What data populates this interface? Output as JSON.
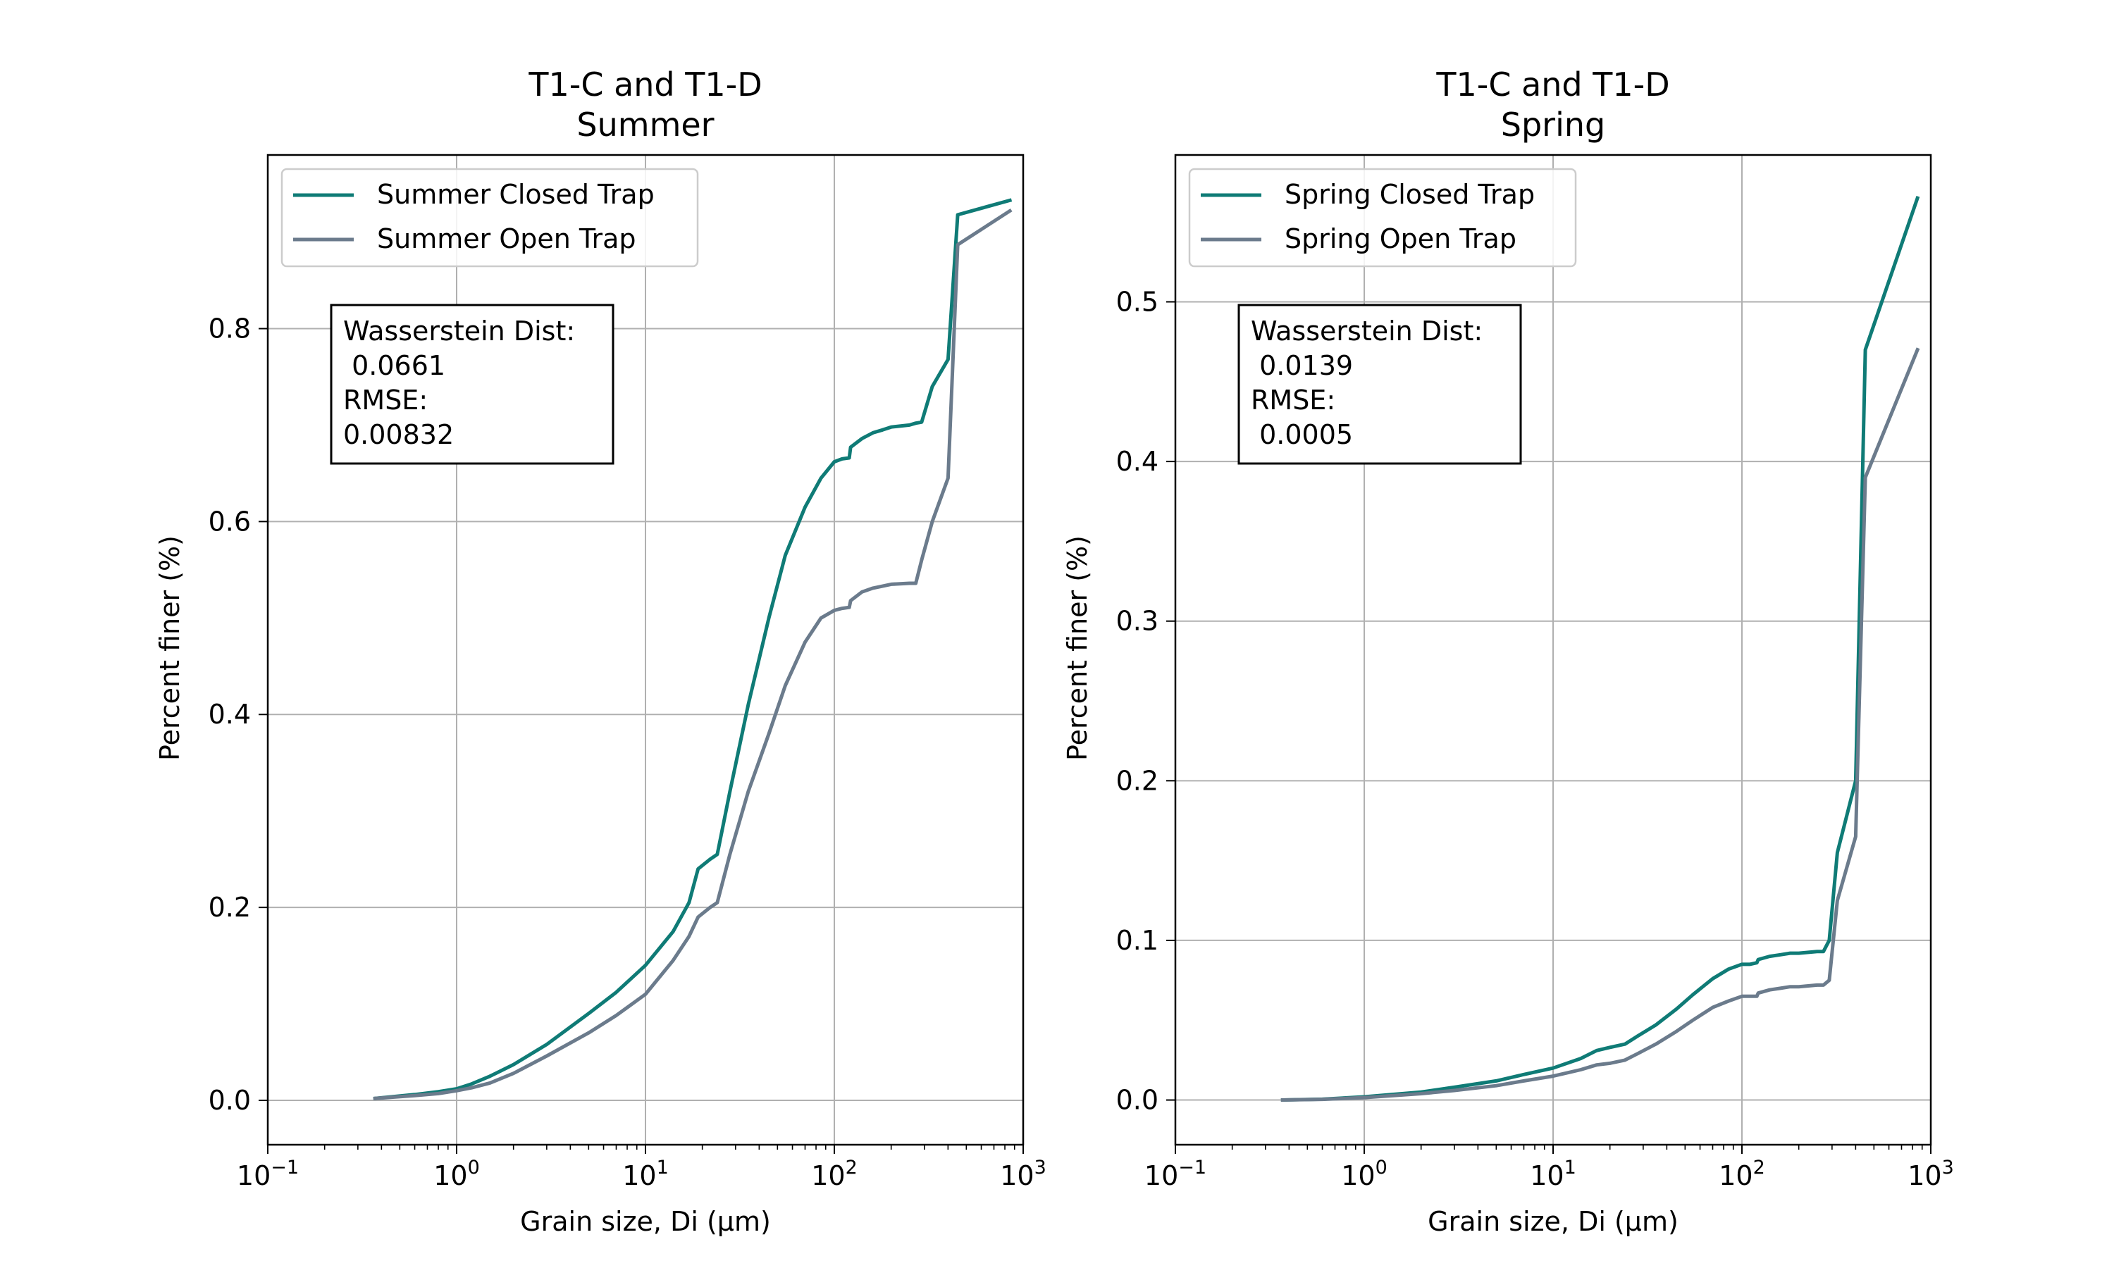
{
  "chart_data": [
    {
      "type": "line",
      "title": "T1-C and T1-D",
      "subtitle": "Summer",
      "xlabel": "Grain size, Di (μm)",
      "ylabel": "Percent finer (%)",
      "xscale": "log",
      "xlim": [
        0.1,
        1000
      ],
      "ylim": [
        -0.046,
        0.98
      ],
      "xticks": [
        0.1,
        1,
        10,
        100,
        1000
      ],
      "xtick_labels": [
        [
          "10",
          "−1"
        ],
        [
          "10",
          "0"
        ],
        [
          "10",
          "1"
        ],
        [
          "10",
          "2"
        ],
        [
          "10",
          "3"
        ]
      ],
      "yticks": [
        0.0,
        0.2,
        0.4,
        0.6,
        0.8
      ],
      "ytick_labels": [
        "0.0",
        "0.2",
        "0.4",
        "0.6",
        "0.8"
      ],
      "grid": true,
      "legend_position": "upper-left",
      "annotation": [
        "Wasserstein Dist:",
        " 0.0661",
        "RMSE:",
        "0.00832"
      ],
      "series": [
        {
          "name": "Summer Closed Trap",
          "color": "#0f7b76",
          "x": [
            0.37,
            0.6,
            0.8,
            1.0,
            1.2,
            1.5,
            2,
            3,
            5,
            7,
            10,
            14,
            17,
            19,
            22,
            24,
            28,
            35,
            45,
            55,
            70,
            85,
            100,
            110,
            120,
            122,
            140,
            160,
            180,
            200,
            250,
            270,
            290,
            330,
            400,
            450,
            850
          ],
          "y": [
            0.002,
            0.006,
            0.009,
            0.012,
            0.017,
            0.025,
            0.037,
            0.058,
            0.09,
            0.112,
            0.14,
            0.175,
            0.205,
            0.24,
            0.25,
            0.255,
            0.32,
            0.41,
            0.5,
            0.565,
            0.615,
            0.645,
            0.662,
            0.665,
            0.666,
            0.677,
            0.686,
            0.692,
            0.695,
            0.698,
            0.7,
            0.702,
            0.703,
            0.74,
            0.768,
            0.918,
            0.933
          ]
        },
        {
          "name": "Summer Open Trap",
          "color": "#6b7b8c",
          "x": [
            0.37,
            0.6,
            0.8,
            1.0,
            1.2,
            1.5,
            2,
            3,
            5,
            7,
            10,
            14,
            17,
            19,
            22,
            24,
            28,
            35,
            45,
            55,
            70,
            85,
            100,
            110,
            120,
            122,
            140,
            160,
            180,
            200,
            250,
            270,
            290,
            330,
            400,
            450,
            850
          ],
          "y": [
            0.002,
            0.005,
            0.007,
            0.01,
            0.013,
            0.018,
            0.028,
            0.046,
            0.07,
            0.088,
            0.11,
            0.145,
            0.17,
            0.19,
            0.2,
            0.205,
            0.255,
            0.32,
            0.38,
            0.43,
            0.475,
            0.5,
            0.508,
            0.51,
            0.511,
            0.518,
            0.527,
            0.531,
            0.533,
            0.535,
            0.536,
            0.536,
            0.56,
            0.6,
            0.645,
            0.887,
            0.922
          ]
        }
      ]
    },
    {
      "type": "line",
      "title": "T1-C and T1-D",
      "subtitle": "Spring",
      "xlabel": "Grain size, Di (μm)",
      "ylabel": "Percent finer (%)",
      "xscale": "log",
      "xlim": [
        0.1,
        1000
      ],
      "ylim": [
        -0.028,
        0.592
      ],
      "xticks": [
        0.1,
        1,
        10,
        100,
        1000
      ],
      "xtick_labels": [
        [
          "10",
          "−1"
        ],
        [
          "10",
          "0"
        ],
        [
          "10",
          "1"
        ],
        [
          "10",
          "2"
        ],
        [
          "10",
          "3"
        ]
      ],
      "yticks": [
        0.0,
        0.1,
        0.2,
        0.3,
        0.4,
        0.5
      ],
      "ytick_labels": [
        "0.0",
        "0.1",
        "0.2",
        "0.3",
        "0.4",
        "0.5"
      ],
      "grid": true,
      "legend_position": "upper-left",
      "annotation": [
        "Wasserstein Dist:",
        " 0.0139",
        "RMSE:",
        " 0.0005"
      ],
      "series": [
        {
          "name": "Spring Closed Trap",
          "color": "#0f7b76",
          "x": [
            0.37,
            0.6,
            1.0,
            2,
            3,
            5,
            7,
            10,
            14,
            17,
            20,
            24,
            28,
            35,
            45,
            55,
            70,
            85,
            100,
            110,
            120,
            122,
            140,
            160,
            180,
            200,
            250,
            270,
            290,
            320,
            400,
            450,
            850
          ],
          "y": [
            0.0,
            0.0005,
            0.002,
            0.005,
            0.008,
            0.012,
            0.016,
            0.02,
            0.026,
            0.031,
            0.033,
            0.035,
            0.04,
            0.047,
            0.057,
            0.066,
            0.076,
            0.082,
            0.085,
            0.085,
            0.086,
            0.088,
            0.09,
            0.091,
            0.092,
            0.092,
            0.093,
            0.093,
            0.1,
            0.155,
            0.2,
            0.47,
            0.565
          ]
        },
        {
          "name": "Spring Open Trap",
          "color": "#6b7b8c",
          "x": [
            0.37,
            0.6,
            1.0,
            2,
            3,
            5,
            7,
            10,
            14,
            17,
            20,
            24,
            28,
            35,
            45,
            55,
            70,
            85,
            100,
            110,
            120,
            122,
            140,
            160,
            180,
            200,
            250,
            270,
            290,
            320,
            400,
            450,
            850
          ],
          "y": [
            0.0,
            0.0004,
            0.0015,
            0.004,
            0.006,
            0.009,
            0.012,
            0.015,
            0.019,
            0.022,
            0.023,
            0.025,
            0.029,
            0.035,
            0.043,
            0.05,
            0.058,
            0.062,
            0.065,
            0.065,
            0.065,
            0.067,
            0.069,
            0.07,
            0.071,
            0.071,
            0.072,
            0.072,
            0.075,
            0.125,
            0.165,
            0.39,
            0.47
          ]
        }
      ]
    }
  ]
}
